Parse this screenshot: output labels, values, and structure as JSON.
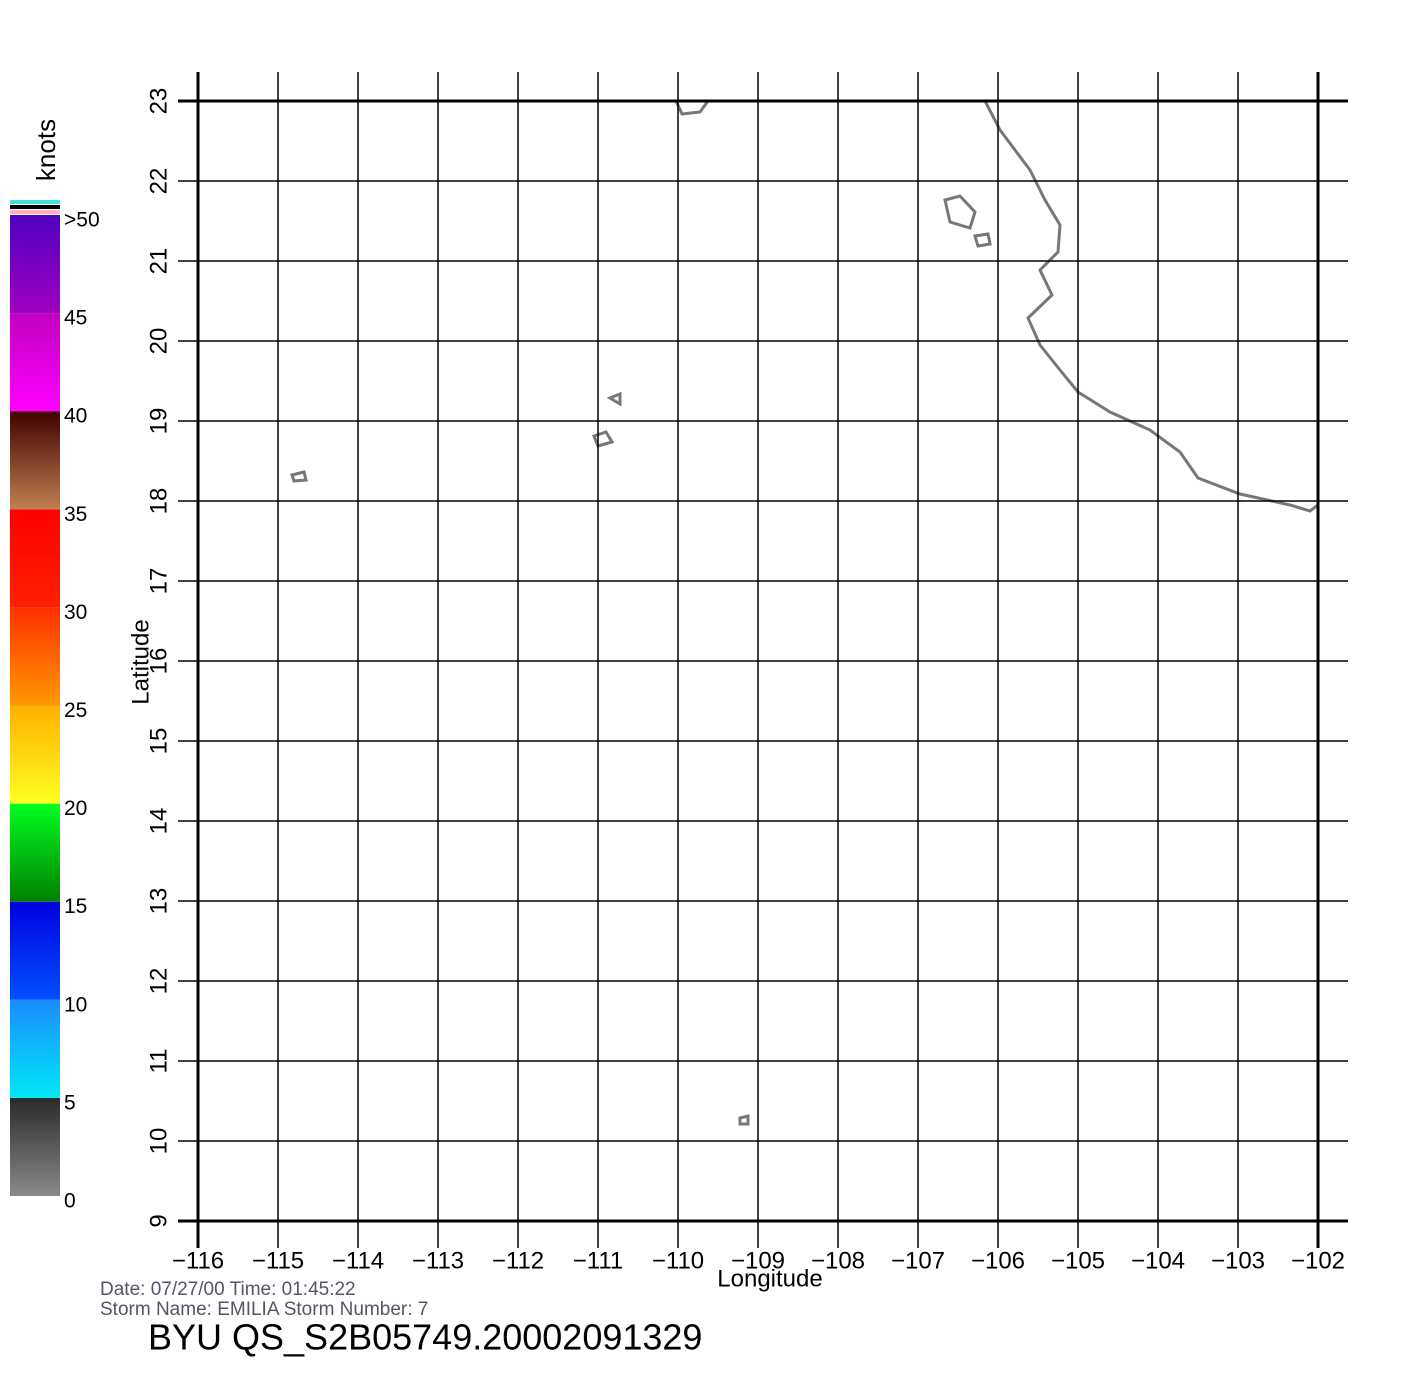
{
  "map": {
    "type": "wind-vector",
    "xlabel": "Longitude",
    "ylabel": "Latitude",
    "xlim": [
      -116,
      -102
    ],
    "ylim": [
      9,
      23
    ],
    "xticks": [
      {
        "value": -116,
        "label": "−116"
      },
      {
        "value": -115,
        "label": "−115"
      },
      {
        "value": -114,
        "label": "−114"
      },
      {
        "value": -113,
        "label": "−113"
      },
      {
        "value": -112,
        "label": "−112"
      },
      {
        "value": -111,
        "label": "−111"
      },
      {
        "value": -110,
        "label": "−110"
      },
      {
        "value": -109,
        "label": "−109"
      },
      {
        "value": -108,
        "label": "−108"
      },
      {
        "value": -107,
        "label": "−107"
      },
      {
        "value": -106,
        "label": "−106"
      },
      {
        "value": -105,
        "label": "−105"
      },
      {
        "value": -104,
        "label": "−104"
      },
      {
        "value": -103,
        "label": "−103"
      },
      {
        "value": -102,
        "label": "−102"
      }
    ],
    "yticks": [
      9,
      10,
      11,
      12,
      13,
      14,
      15,
      16,
      17,
      18,
      19,
      20,
      21,
      22,
      23
    ],
    "grid": true,
    "coast_color": "#777777"
  },
  "colorbar": {
    "title": "knots",
    "lim": [
      0,
      50
    ],
    "ticks": [
      0,
      5,
      10,
      15,
      20,
      25,
      30,
      35,
      40,
      45,
      {
        "value": 50,
        "label": ">50"
      }
    ],
    "colors": [
      [
        "#8a8a8a",
        "#2a2a2a"
      ],
      [
        "#00e8f8",
        "#1a8cff"
      ],
      [
        "#0050ff",
        "#0000e0"
      ],
      [
        "#008000",
        "#00ff20"
      ],
      [
        "#ffff20",
        "#ffb000"
      ],
      [
        "#ff9800",
        "#ff3000"
      ],
      [
        "#ff2000",
        "#ff0000"
      ],
      [
        "#c08050",
        "#400000"
      ],
      [
        "#ff00ff",
        "#c000c0"
      ],
      [
        "#a000c0",
        "#5000c0"
      ]
    ]
  },
  "info": {
    "line1": "Date: 07/27/00   Time: 01:45:22",
    "line2": "Storm Name: EMILIA   Storm Number: 7",
    "title": "BYU QS_S2B05749.20002091329"
  }
}
